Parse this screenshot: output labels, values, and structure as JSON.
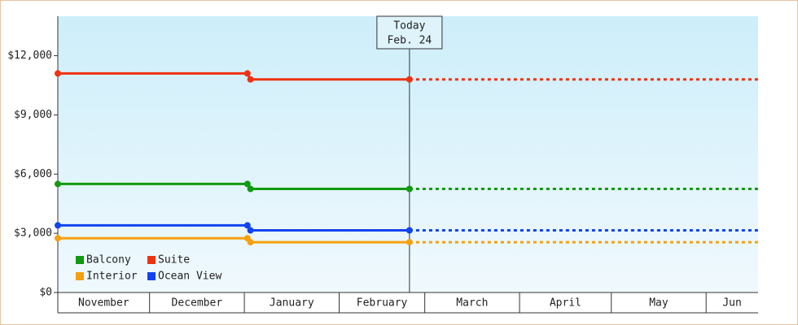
{
  "chart_data": {
    "type": "line",
    "x": [
      0,
      62,
      63,
      115,
      229
    ],
    "series": [
      {
        "name": "Balcony",
        "color": "#119911",
        "values": [
          5500,
          5500,
          5250,
          5250,
          5250
        ]
      },
      {
        "name": "Suite",
        "color": "#ee3311",
        "values": [
          11100,
          11100,
          10800,
          10800,
          10800
        ]
      },
      {
        "name": "Interior",
        "color": "#f5a00f",
        "values": [
          2750,
          2750,
          2550,
          2550,
          2550
        ]
      },
      {
        "name": "Ocean View",
        "color": "#1144ee",
        "values": [
          3400,
          3400,
          3150,
          3150,
          3150
        ]
      }
    ],
    "xlim": [
      0,
      229
    ],
    "xticks": [
      {
        "value": 0,
        "label": "November"
      },
      {
        "value": 30,
        "label": "December"
      },
      {
        "value": 61,
        "label": "January"
      },
      {
        "value": 92,
        "label": "February"
      },
      {
        "value": 120,
        "label": "March"
      },
      {
        "value": 151,
        "label": "April"
      },
      {
        "value": 181,
        "label": "May"
      },
      {
        "value": 212,
        "label": "Jun"
      }
    ],
    "ylim": [
      0,
      14000
    ],
    "yticks": [
      {
        "value": 0,
        "label": "$0"
      },
      {
        "value": 3000,
        "label": "$3,000"
      },
      {
        "value": 6000,
        "label": "$6,000"
      },
      {
        "value": 9000,
        "label": "$9,000"
      },
      {
        "value": 12000,
        "label": "$12,000"
      }
    ],
    "annotation": {
      "x": 115,
      "lines": [
        "Today",
        "Feb. 24"
      ]
    },
    "legend": "lower left"
  }
}
